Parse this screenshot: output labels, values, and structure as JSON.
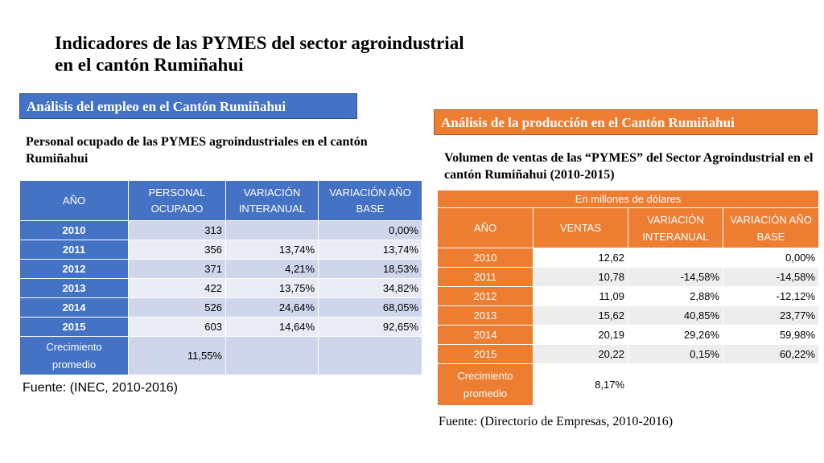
{
  "title": {
    "line1": "Indicadores de las PYMES del sector agroindustrial",
    "line2": "en el cantón Rumiñahui"
  },
  "left": {
    "section_label": "Análisis del empleo en el Cantón Rumiñahui",
    "subtitle": "Personal ocupado de las PYMES agroindustriales en el cantón Rumiñahui",
    "headers": [
      "AÑO",
      "PERSONAL OCUPADO",
      "VARIACIÓN INTERANUAL",
      "VARIACIÓN AÑO BASE"
    ],
    "rows": [
      [
        "2010",
        "313",
        "",
        "0,00%"
      ],
      [
        "2011",
        "356",
        "13,74%",
        "13,74%"
      ],
      [
        "2012",
        "371",
        "4,21%",
        "18,53%"
      ],
      [
        "2013",
        "422",
        "13,75%",
        "34,82%"
      ],
      [
        "2014",
        "526",
        "24,64%",
        "68,05%"
      ],
      [
        "2015",
        "603",
        "14,64%",
        "92,65%"
      ]
    ],
    "footer": [
      "Crecimiento promedio",
      "11,55%",
      "",
      ""
    ],
    "source": "Fuente: (INEC, 2010-2016)"
  },
  "right": {
    "section_label": "Análisis de la producción en el Cantón Rumiñahui",
    "subtitle": "Volumen de ventas de las “PYMES” del Sector Agroindustrial en el cantón Rumiñahui (2010-2015)",
    "unit_header": "En millones de dólares",
    "headers": [
      "AÑO",
      "VENTAS",
      "VARIACIÓN INTERANUAL",
      "VARIACIÓN AÑO BASE"
    ],
    "rows": [
      [
        "2010",
        "12,62",
        "",
        "0,00%"
      ],
      [
        "2011",
        "10,78",
        "-14,58%",
        "-14,58%"
      ],
      [
        "2012",
        "11,09",
        "2,88%",
        "-12,12%"
      ],
      [
        "2013",
        "15,62",
        "40,85%",
        "23,77%"
      ],
      [
        "2014",
        "20,19",
        "29,26%",
        "59,98%"
      ],
      [
        "2015",
        "20,22",
        "0,15%",
        "60,22%"
      ]
    ],
    "footer": [
      "Crecimiento promedio",
      "8,17%",
      "",
      ""
    ],
    "source": "Fuente: (Directorio de Empresas, 2010-2016)"
  },
  "colors": {
    "blue_header": "#4472c4",
    "blue_band_dark": "#cfd5ea",
    "blue_band_light": "#e9ebf5",
    "orange_header": "#ed7d31",
    "orange_band": "#ededed"
  }
}
